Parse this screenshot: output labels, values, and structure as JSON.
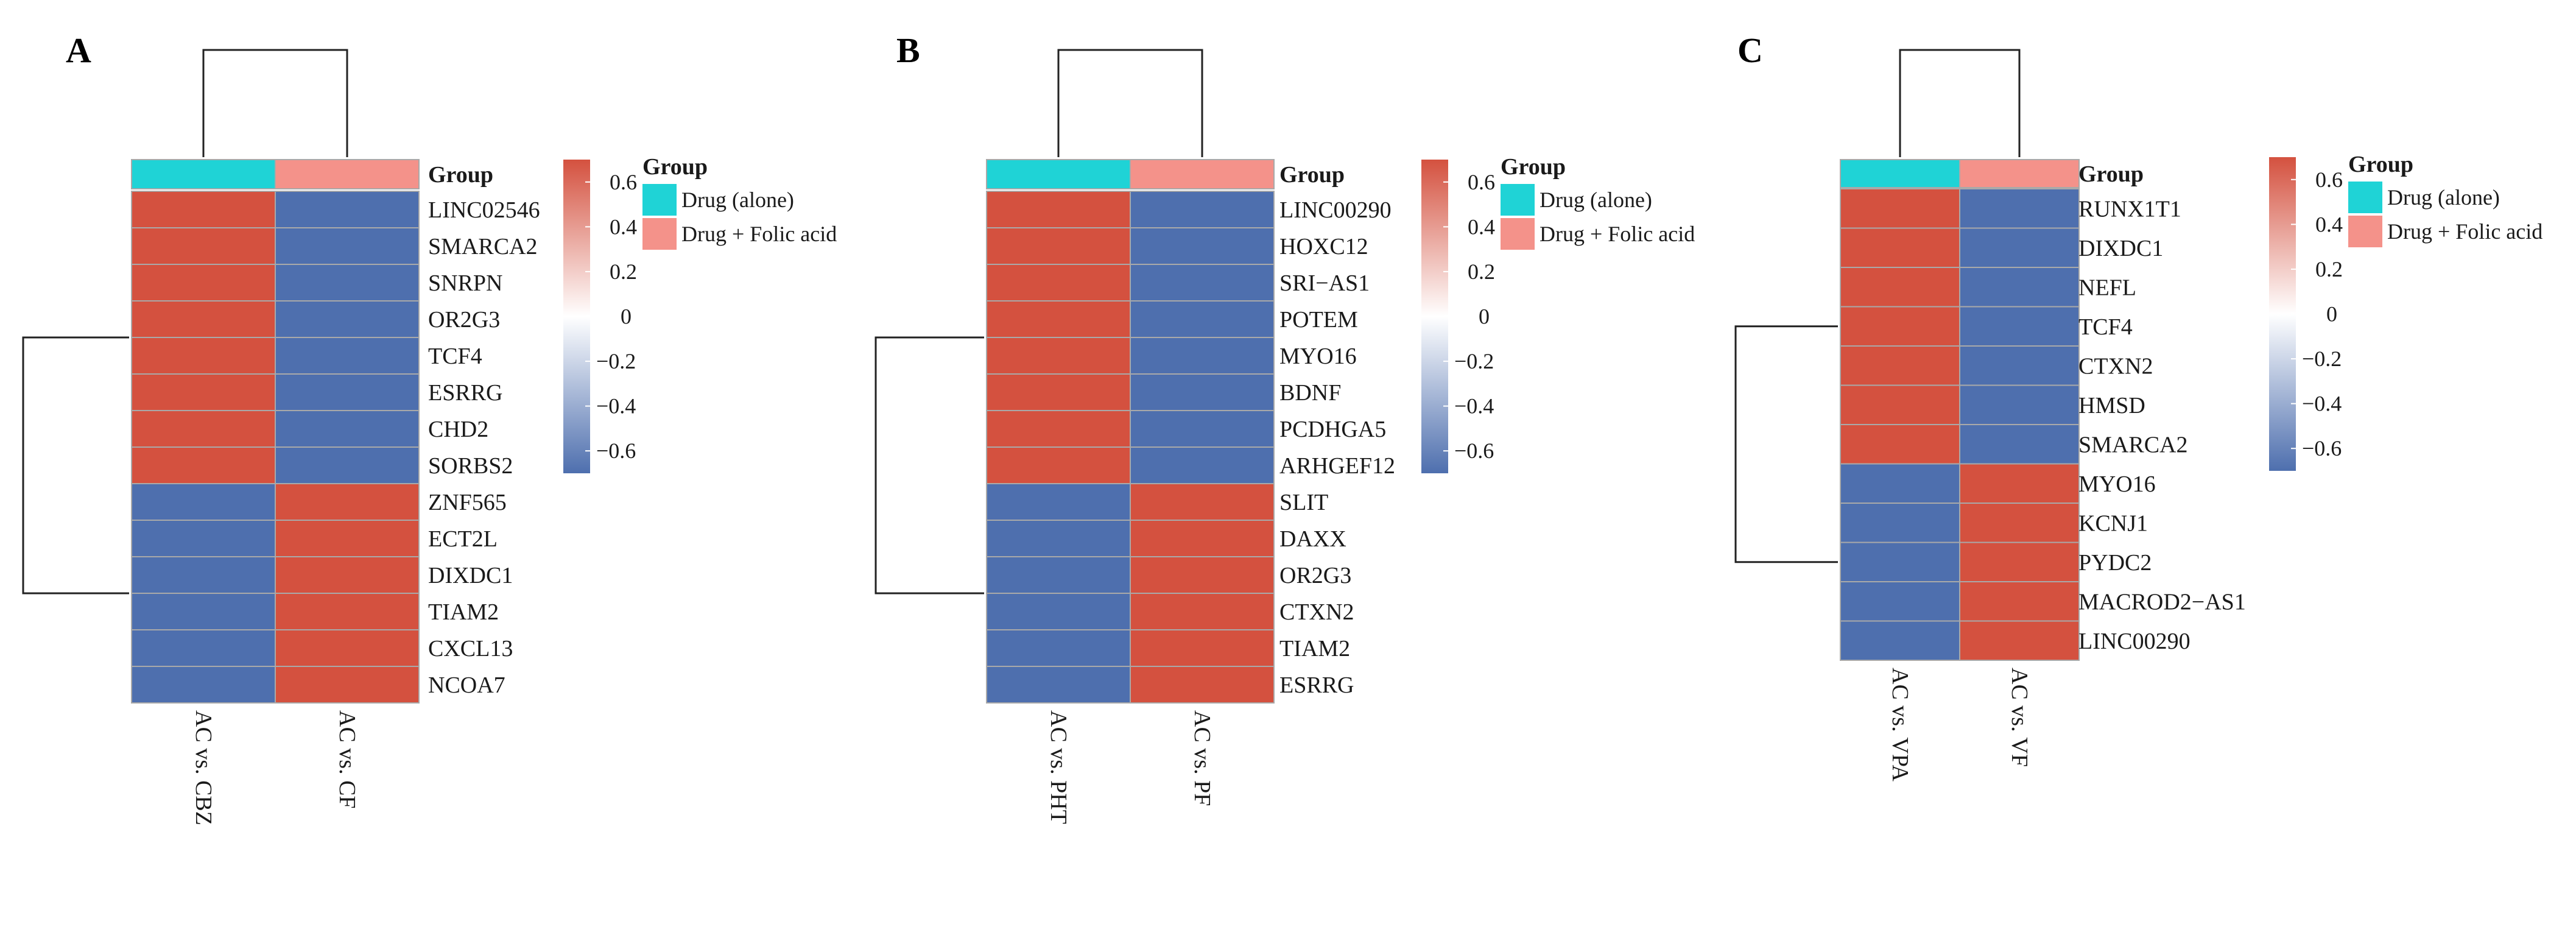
{
  "colors": {
    "up": "#d4513f",
    "down": "#4e6fae",
    "mid": "#ffffff",
    "grid": "#a9a9a9",
    "drug_alone": "#1fd3d6",
    "drug_folic": "#f4928a"
  },
  "chart_data": [
    {
      "type": "heatmap",
      "panel": "A",
      "annotation_title": "Group",
      "columns": [
        "AC vs. CBZ",
        "AC vs. CF"
      ],
      "column_groups": [
        "Drug (alone)",
        "Drug + Folic acid"
      ],
      "rows": [
        "LINC02546",
        "SMARCA2",
        "SNRPN",
        "OR2G3",
        "TCF4",
        "ESRRG",
        "CHD2",
        "SORBS2",
        "ZNF565",
        "ECT2L",
        "DIXDC1",
        "TIAM2",
        "CXCL13",
        "NCOA7"
      ],
      "values": [
        [
          0.7,
          -0.7
        ],
        [
          0.7,
          -0.7
        ],
        [
          0.7,
          -0.7
        ],
        [
          0.7,
          -0.7
        ],
        [
          0.7,
          -0.7
        ],
        [
          0.7,
          -0.7
        ],
        [
          0.7,
          -0.7
        ],
        [
          0.7,
          -0.7
        ],
        [
          -0.7,
          0.7
        ],
        [
          -0.7,
          0.7
        ],
        [
          -0.7,
          0.7
        ],
        [
          -0.7,
          0.7
        ],
        [
          -0.7,
          0.7
        ],
        [
          -0.7,
          0.7
        ]
      ],
      "row_clusters": [
        8,
        6
      ],
      "color_scale": {
        "min": -0.7,
        "max": 0.7,
        "ticks": [
          0.6,
          0.4,
          0.2,
          0,
          -0.2,
          -0.4,
          -0.6
        ],
        "tick_labels": [
          "0.6",
          "0.4",
          "0.2",
          "0",
          "−0.2",
          "−0.4",
          "−0.6"
        ]
      },
      "legend": {
        "title": "Group",
        "entries": [
          "Drug (alone)",
          "Drug + Folic acid"
        ]
      }
    },
    {
      "type": "heatmap",
      "panel": "B",
      "annotation_title": "Group",
      "columns": [
        "AC vs. PHT",
        "AC vs. PF"
      ],
      "column_groups": [
        "Drug (alone)",
        "Drug + Folic acid"
      ],
      "rows": [
        "LINC00290",
        "HOXC12",
        "SRI−AS1",
        "POTEM",
        "MYO16",
        "BDNF",
        "PCDHGA5",
        "ARHGEF12",
        "SLIT",
        "DAXX",
        "OR2G3",
        "CTXN2",
        "TIAM2",
        "ESRRG"
      ],
      "values": [
        [
          0.7,
          -0.7
        ],
        [
          0.7,
          -0.7
        ],
        [
          0.7,
          -0.7
        ],
        [
          0.7,
          -0.7
        ],
        [
          0.7,
          -0.7
        ],
        [
          0.7,
          -0.7
        ],
        [
          0.7,
          -0.7
        ],
        [
          0.7,
          -0.7
        ],
        [
          -0.7,
          0.7
        ],
        [
          -0.7,
          0.7
        ],
        [
          -0.7,
          0.7
        ],
        [
          -0.7,
          0.7
        ],
        [
          -0.7,
          0.7
        ],
        [
          -0.7,
          0.7
        ]
      ],
      "row_clusters": [
        8,
        6
      ],
      "color_scale": {
        "min": -0.7,
        "max": 0.7,
        "ticks": [
          0.6,
          0.4,
          0.2,
          0,
          -0.2,
          -0.4,
          -0.6
        ],
        "tick_labels": [
          "0.6",
          "0.4",
          "0.2",
          "0",
          "−0.2",
          "−0.4",
          "−0.6"
        ]
      },
      "legend": {
        "title": "Group",
        "entries": [
          "Drug (alone)",
          "Drug + Folic acid"
        ]
      }
    },
    {
      "type": "heatmap",
      "panel": "C",
      "annotation_title": "Group",
      "columns": [
        "AC vs. VPA",
        "AC vs. VF"
      ],
      "column_groups": [
        "Drug (alone)",
        "Drug + Folic acid"
      ],
      "rows": [
        "RUNX1T1",
        "DIXDC1",
        "NEFL",
        "TCF4",
        "CTXN2",
        "HMSD",
        "SMARCA2",
        "MYO16",
        "KCNJ1",
        "PYDC2",
        "MACROD2−AS1",
        "LINC00290"
      ],
      "values": [
        [
          0.7,
          -0.7
        ],
        [
          0.7,
          -0.7
        ],
        [
          0.7,
          -0.7
        ],
        [
          0.7,
          -0.7
        ],
        [
          0.7,
          -0.7
        ],
        [
          0.7,
          -0.7
        ],
        [
          0.7,
          -0.7
        ],
        [
          -0.7,
          0.7
        ],
        [
          -0.7,
          0.7
        ],
        [
          -0.7,
          0.7
        ],
        [
          -0.7,
          0.7
        ],
        [
          -0.7,
          0.7
        ]
      ],
      "row_clusters": [
        7,
        5
      ],
      "color_scale": {
        "min": -0.7,
        "max": 0.7,
        "ticks": [
          0.6,
          0.4,
          0.2,
          0,
          -0.2,
          -0.4,
          -0.6
        ],
        "tick_labels": [
          "0.6",
          "0.4",
          "0.2",
          "0",
          "−0.2",
          "−0.4",
          "−0.6"
        ]
      },
      "legend": {
        "title": "Group",
        "entries": [
          "Drug (alone)",
          "Drug + Folic acid"
        ]
      }
    }
  ]
}
